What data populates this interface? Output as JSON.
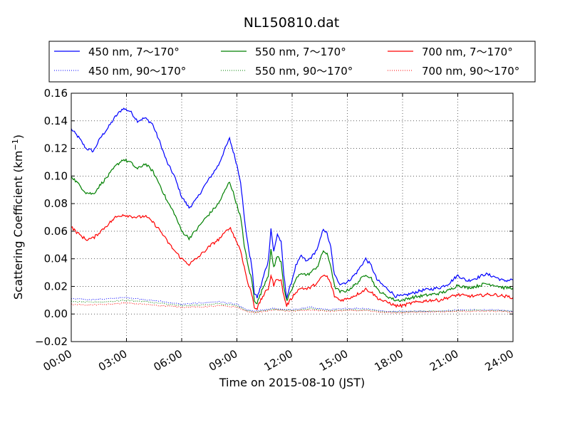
{
  "chart_data": {
    "type": "line",
    "title": "NL150810.dat",
    "xlabel": "Time on 2015-08-10 (JST)",
    "ylabel_main": "Scattering Coefficient (km",
    "ylabel_sup": "−1",
    "ylabel_end": ")",
    "xlim_hours": [
      0,
      24
    ],
    "ylim": [
      -0.02,
      0.16
    ],
    "x_tick_hours": [
      0,
      3,
      6,
      9,
      12,
      15,
      18,
      21,
      24
    ],
    "x_tick_labels": [
      "00:00",
      "03:00",
      "06:00",
      "09:00",
      "12:00",
      "15:00",
      "18:00",
      "21:00",
      "24:00"
    ],
    "y_ticks": [
      -0.02,
      0.0,
      0.02,
      0.04,
      0.06,
      0.08,
      0.1,
      0.12,
      0.14,
      0.16
    ],
    "y_tick_labels": [
      "−0.02",
      "0.00",
      "0.02",
      "0.04",
      "0.06",
      "0.08",
      "0.10",
      "0.12",
      "0.14",
      "0.16"
    ],
    "grid": true,
    "legend_position": "top",
    "series": [
      {
        "name": "450 nm, 7～170°",
        "color": "#0000ff",
        "style": "solid",
        "points": [
          [
            0,
            0.134
          ],
          [
            0.4,
            0.128
          ],
          [
            0.8,
            0.12
          ],
          [
            1.2,
            0.118
          ],
          [
            1.6,
            0.128
          ],
          [
            2,
            0.135
          ],
          [
            2.4,
            0.143
          ],
          [
            2.8,
            0.149
          ],
          [
            3.2,
            0.147
          ],
          [
            3.6,
            0.14
          ],
          [
            4,
            0.142
          ],
          [
            4.4,
            0.138
          ],
          [
            4.8,
            0.125
          ],
          [
            5.2,
            0.11
          ],
          [
            5.6,
            0.1
          ],
          [
            6,
            0.085
          ],
          [
            6.4,
            0.077
          ],
          [
            6.8,
            0.083
          ],
          [
            7.2,
            0.092
          ],
          [
            7.6,
            0.1
          ],
          [
            8,
            0.108
          ],
          [
            8.3,
            0.118
          ],
          [
            8.6,
            0.127
          ],
          [
            8.8,
            0.118
          ],
          [
            9,
            0.108
          ],
          [
            9.2,
            0.096
          ],
          [
            9.4,
            0.07
          ],
          [
            9.6,
            0.05
          ],
          [
            9.8,
            0.035
          ],
          [
            9.95,
            0.015
          ],
          [
            10.1,
            0.012
          ],
          [
            10.3,
            0.02
          ],
          [
            10.5,
            0.03
          ],
          [
            10.7,
            0.038
          ],
          [
            10.85,
            0.062
          ],
          [
            11,
            0.045
          ],
          [
            11.2,
            0.058
          ],
          [
            11.4,
            0.052
          ],
          [
            11.55,
            0.028
          ],
          [
            11.7,
            0.012
          ],
          [
            11.9,
            0.02
          ],
          [
            12.2,
            0.035
          ],
          [
            12.5,
            0.042
          ],
          [
            12.8,
            0.038
          ],
          [
            13.1,
            0.042
          ],
          [
            13.4,
            0.048
          ],
          [
            13.7,
            0.062
          ],
          [
            13.9,
            0.058
          ],
          [
            14.1,
            0.048
          ],
          [
            14.3,
            0.028
          ],
          [
            14.6,
            0.022
          ],
          [
            15,
            0.023
          ],
          [
            15.5,
            0.03
          ],
          [
            16,
            0.04
          ],
          [
            16.3,
            0.035
          ],
          [
            16.6,
            0.025
          ],
          [
            17,
            0.02
          ],
          [
            17.3,
            0.017
          ],
          [
            17.6,
            0.013
          ],
          [
            18,
            0.013
          ],
          [
            18.5,
            0.015
          ],
          [
            19,
            0.017
          ],
          [
            19.5,
            0.018
          ],
          [
            20,
            0.019
          ],
          [
            20.5,
            0.022
          ],
          [
            21,
            0.028
          ],
          [
            21.5,
            0.024
          ],
          [
            22,
            0.026
          ],
          [
            22.5,
            0.029
          ],
          [
            23,
            0.027
          ],
          [
            23.5,
            0.024
          ],
          [
            24,
            0.025
          ]
        ]
      },
      {
        "name": "450 nm, 90～170°",
        "color": "#0000ff",
        "style": "dotted",
        "points": [
          [
            0,
            0.011
          ],
          [
            1,
            0.0105
          ],
          [
            2,
            0.011
          ],
          [
            3,
            0.012
          ],
          [
            4,
            0.0105
          ],
          [
            5,
            0.009
          ],
          [
            6,
            0.007
          ],
          [
            7,
            0.008
          ],
          [
            8,
            0.009
          ],
          [
            9,
            0.007
          ],
          [
            9.5,
            0.003
          ],
          [
            10,
            0.002
          ],
          [
            11,
            0.004
          ],
          [
            12,
            0.003
          ],
          [
            13,
            0.005
          ],
          [
            14,
            0.003
          ],
          [
            15,
            0.004
          ],
          [
            16,
            0.004
          ],
          [
            17,
            0.002
          ],
          [
            18,
            0.002
          ],
          [
            19,
            0.002
          ],
          [
            20,
            0.002
          ],
          [
            21,
            0.003
          ],
          [
            22,
            0.003
          ],
          [
            23,
            0.003
          ],
          [
            24,
            0.002
          ]
        ]
      },
      {
        "name": "550 nm, 7～170°",
        "color": "#008000",
        "style": "solid",
        "points": [
          [
            0,
            0.1
          ],
          [
            0.4,
            0.094
          ],
          [
            0.8,
            0.088
          ],
          [
            1.2,
            0.087
          ],
          [
            1.6,
            0.094
          ],
          [
            2,
            0.1
          ],
          [
            2.4,
            0.107
          ],
          [
            2.8,
            0.112
          ],
          [
            3.2,
            0.11
          ],
          [
            3.6,
            0.105
          ],
          [
            4,
            0.109
          ],
          [
            4.4,
            0.104
          ],
          [
            4.8,
            0.094
          ],
          [
            5.2,
            0.082
          ],
          [
            5.6,
            0.073
          ],
          [
            6,
            0.06
          ],
          [
            6.4,
            0.055
          ],
          [
            6.8,
            0.061
          ],
          [
            7.2,
            0.068
          ],
          [
            7.6,
            0.074
          ],
          [
            8,
            0.08
          ],
          [
            8.3,
            0.088
          ],
          [
            8.6,
            0.096
          ],
          [
            8.8,
            0.088
          ],
          [
            9,
            0.079
          ],
          [
            9.2,
            0.07
          ],
          [
            9.4,
            0.05
          ],
          [
            9.6,
            0.035
          ],
          [
            9.8,
            0.025
          ],
          [
            9.95,
            0.01
          ],
          [
            10.1,
            0.008
          ],
          [
            10.3,
            0.015
          ],
          [
            10.5,
            0.022
          ],
          [
            10.7,
            0.028
          ],
          [
            10.85,
            0.046
          ],
          [
            11,
            0.034
          ],
          [
            11.2,
            0.042
          ],
          [
            11.4,
            0.038
          ],
          [
            11.55,
            0.02
          ],
          [
            11.7,
            0.009
          ],
          [
            11.9,
            0.015
          ],
          [
            12.2,
            0.025
          ],
          [
            12.5,
            0.03
          ],
          [
            12.8,
            0.028
          ],
          [
            13.1,
            0.031
          ],
          [
            13.4,
            0.035
          ],
          [
            13.7,
            0.046
          ],
          [
            13.9,
            0.043
          ],
          [
            14.1,
            0.035
          ],
          [
            14.3,
            0.02
          ],
          [
            14.6,
            0.016
          ],
          [
            15,
            0.017
          ],
          [
            15.5,
            0.022
          ],
          [
            16,
            0.029
          ],
          [
            16.3,
            0.026
          ],
          [
            16.6,
            0.018
          ],
          [
            17,
            0.014
          ],
          [
            17.3,
            0.012
          ],
          [
            17.6,
            0.01
          ],
          [
            18,
            0.01
          ],
          [
            18.5,
            0.012
          ],
          [
            19,
            0.013
          ],
          [
            19.5,
            0.014
          ],
          [
            20,
            0.015
          ],
          [
            20.5,
            0.017
          ],
          [
            21,
            0.021
          ],
          [
            21.5,
            0.019
          ],
          [
            22,
            0.02
          ],
          [
            22.5,
            0.022
          ],
          [
            23,
            0.021
          ],
          [
            23.5,
            0.019
          ],
          [
            24,
            0.019
          ]
        ]
      },
      {
        "name": "550 nm, 90～170°",
        "color": "#008000",
        "style": "dotted",
        "points": [
          [
            0,
            0.009
          ],
          [
            1,
            0.0085
          ],
          [
            2,
            0.009
          ],
          [
            3,
            0.01
          ],
          [
            4,
            0.009
          ],
          [
            5,
            0.0075
          ],
          [
            6,
            0.006
          ],
          [
            7,
            0.0065
          ],
          [
            8,
            0.0075
          ],
          [
            9,
            0.006
          ],
          [
            9.5,
            0.0025
          ],
          [
            10,
            0.0015
          ],
          [
            11,
            0.0035
          ],
          [
            12,
            0.0025
          ],
          [
            13,
            0.004
          ],
          [
            14,
            0.0025
          ],
          [
            15,
            0.003
          ],
          [
            16,
            0.003
          ],
          [
            17,
            0.0015
          ],
          [
            18,
            0.0015
          ],
          [
            19,
            0.002
          ],
          [
            20,
            0.002
          ],
          [
            21,
            0.0025
          ],
          [
            22,
            0.0025
          ],
          [
            23,
            0.0025
          ],
          [
            24,
            0.002
          ]
        ]
      },
      {
        "name": "700 nm, 7～170°",
        "color": "#ff0000",
        "style": "solid",
        "points": [
          [
            0,
            0.063
          ],
          [
            0.4,
            0.058
          ],
          [
            0.8,
            0.054
          ],
          [
            1.2,
            0.055
          ],
          [
            1.6,
            0.06
          ],
          [
            2,
            0.065
          ],
          [
            2.4,
            0.07
          ],
          [
            2.8,
            0.072
          ],
          [
            3.2,
            0.071
          ],
          [
            3.6,
            0.07
          ],
          [
            4,
            0.071
          ],
          [
            4.4,
            0.067
          ],
          [
            4.8,
            0.061
          ],
          [
            5.2,
            0.053
          ],
          [
            5.6,
            0.046
          ],
          [
            6,
            0.04
          ],
          [
            6.4,
            0.036
          ],
          [
            6.8,
            0.04
          ],
          [
            7.2,
            0.045
          ],
          [
            7.6,
            0.05
          ],
          [
            8,
            0.054
          ],
          [
            8.3,
            0.058
          ],
          [
            8.6,
            0.063
          ],
          [
            8.8,
            0.058
          ],
          [
            9,
            0.052
          ],
          [
            9.2,
            0.046
          ],
          [
            9.4,
            0.034
          ],
          [
            9.6,
            0.022
          ],
          [
            9.8,
            0.015
          ],
          [
            9.95,
            0.005
          ],
          [
            10.1,
            0.004
          ],
          [
            10.3,
            0.01
          ],
          [
            10.5,
            0.015
          ],
          [
            10.7,
            0.018
          ],
          [
            10.85,
            0.028
          ],
          [
            11,
            0.021
          ],
          [
            11.2,
            0.026
          ],
          [
            11.4,
            0.024
          ],
          [
            11.55,
            0.013
          ],
          [
            11.7,
            0.006
          ],
          [
            11.9,
            0.01
          ],
          [
            12.2,
            0.016
          ],
          [
            12.5,
            0.019
          ],
          [
            12.8,
            0.018
          ],
          [
            13.1,
            0.02
          ],
          [
            13.4,
            0.023
          ],
          [
            13.7,
            0.028
          ],
          [
            13.9,
            0.027
          ],
          [
            14.1,
            0.022
          ],
          [
            14.3,
            0.013
          ],
          [
            14.6,
            0.01
          ],
          [
            15,
            0.011
          ],
          [
            15.5,
            0.014
          ],
          [
            16,
            0.018
          ],
          [
            16.3,
            0.016
          ],
          [
            16.6,
            0.012
          ],
          [
            17,
            0.009
          ],
          [
            17.3,
            0.008
          ],
          [
            17.6,
            0.006
          ],
          [
            18,
            0.006
          ],
          [
            18.5,
            0.008
          ],
          [
            19,
            0.009
          ],
          [
            19.5,
            0.01
          ],
          [
            20,
            0.01
          ],
          [
            20.5,
            0.012
          ],
          [
            21,
            0.014
          ],
          [
            21.5,
            0.013
          ],
          [
            22,
            0.013
          ],
          [
            22.5,
            0.014
          ],
          [
            23,
            0.014
          ],
          [
            23.5,
            0.013
          ],
          [
            24,
            0.012
          ]
        ]
      },
      {
        "name": "700 nm, 90～170°",
        "color": "#ff0000",
        "style": "dotted",
        "points": [
          [
            0,
            0.007
          ],
          [
            1,
            0.0065
          ],
          [
            2,
            0.007
          ],
          [
            3,
            0.008
          ],
          [
            4,
            0.007
          ],
          [
            5,
            0.006
          ],
          [
            6,
            0.005
          ],
          [
            7,
            0.005
          ],
          [
            8,
            0.006
          ],
          [
            9,
            0.005
          ],
          [
            9.5,
            0.002
          ],
          [
            10,
            0.001
          ],
          [
            11,
            0.003
          ],
          [
            12,
            0.002
          ],
          [
            13,
            0.003
          ],
          [
            14,
            0.002
          ],
          [
            15,
            0.0025
          ],
          [
            16,
            0.0025
          ],
          [
            17,
            0.001
          ],
          [
            18,
            0.001
          ],
          [
            19,
            0.0015
          ],
          [
            20,
            0.0015
          ],
          [
            21,
            0.002
          ],
          [
            22,
            0.002
          ],
          [
            23,
            0.002
          ],
          [
            24,
            0.0015
          ]
        ]
      }
    ]
  }
}
